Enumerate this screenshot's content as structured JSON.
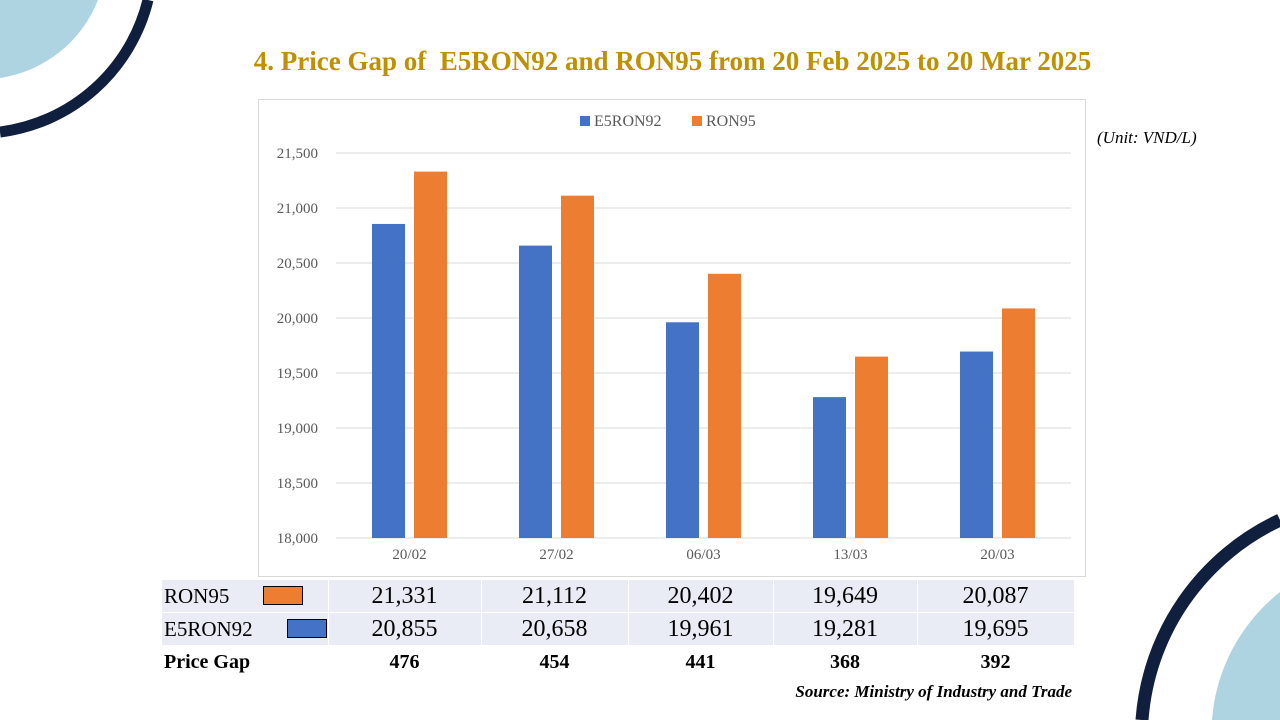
{
  "title": "4. Price Gap of  E5RON92 and RON95 from 20 Feb 2025 to 20 Mar 2025",
  "unit_note": "(Unit: VND/L)",
  "source": "Source: Ministry of Industry and Trade",
  "colors": {
    "title": "#BF9000",
    "e5ron92": "#4472C4",
    "ron95": "#ED7D31",
    "decor_dark": "#0F1F3D",
    "decor_light": "#AED4E2"
  },
  "chart_data": {
    "type": "bar",
    "categories": [
      "20/02",
      "27/02",
      "06/03",
      "13/03",
      "20/03"
    ],
    "series": [
      {
        "name": "E5RON92",
        "values": [
          20855,
          20658,
          19961,
          19281,
          19695
        ]
      },
      {
        "name": "RON95",
        "values": [
          21331,
          21112,
          20402,
          19649,
          20087
        ]
      }
    ],
    "ylim": [
      18000,
      21500
    ],
    "yticks": [
      18000,
      18500,
      19000,
      19500,
      20000,
      20500,
      21000,
      21500
    ],
    "ytick_labels": [
      "18,000",
      "18,500",
      "19,000",
      "19,500",
      "20,000",
      "20,500",
      "21,000",
      "21,500"
    ],
    "xlabel": "",
    "ylabel": "",
    "grid": true,
    "legend": "top-center"
  },
  "table": {
    "rows": [
      {
        "label": "RON95",
        "values": [
          "21,331",
          "21,112",
          "20,402",
          "19,649",
          "20,087"
        ]
      },
      {
        "label": "E5RON92",
        "values": [
          "20,855",
          "20,658",
          "19,961",
          "19,281",
          "19,695"
        ]
      },
      {
        "label": "Price Gap",
        "values": [
          "476",
          "454",
          "441",
          "368",
          "392"
        ]
      }
    ]
  }
}
